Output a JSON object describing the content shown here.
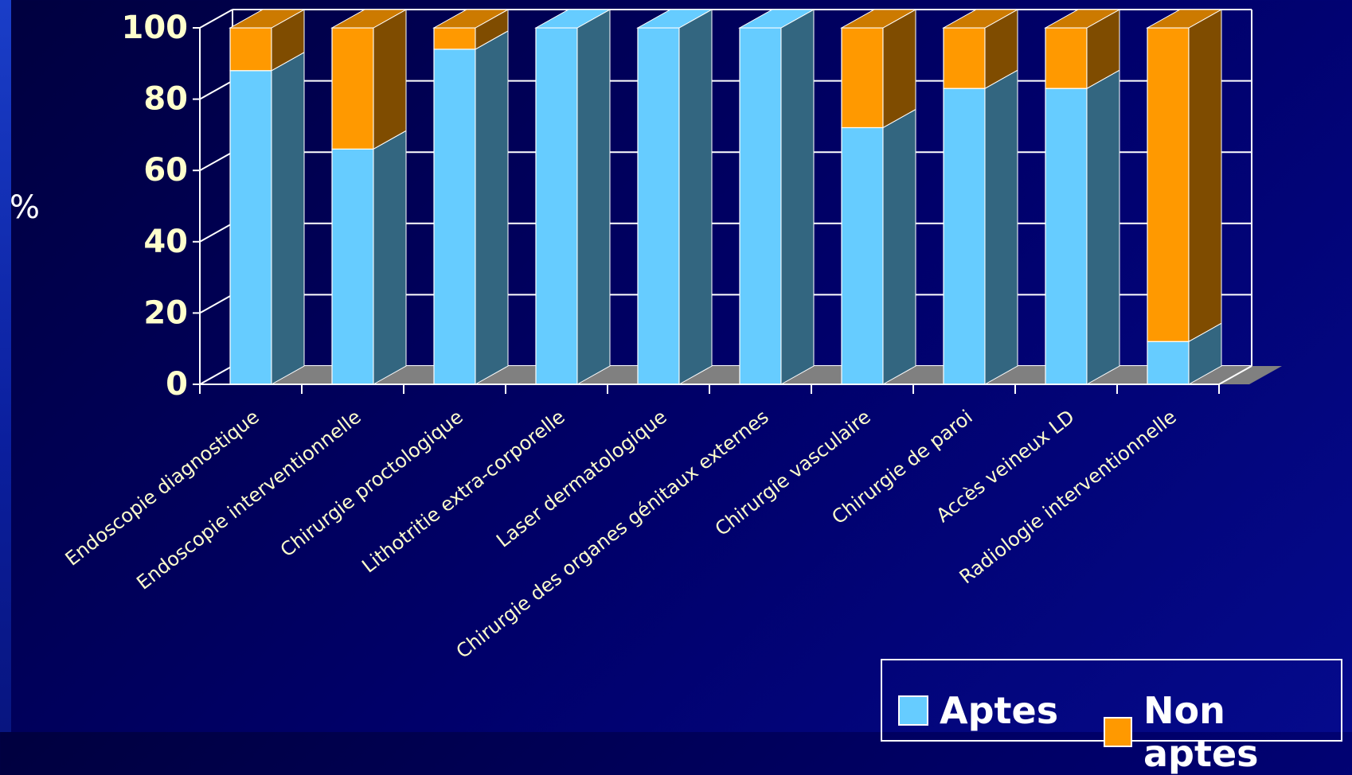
{
  "chart_data": {
    "type": "bar",
    "stacked": true,
    "three_d": true,
    "ylabel": "%",
    "ylim": [
      0,
      100
    ],
    "yticks": [
      0,
      20,
      40,
      60,
      80,
      100
    ],
    "grid": true,
    "legend_position": "bottom-right",
    "categories": [
      "Endoscopie diagnostique",
      "Endoscopie interventionnelle",
      "Chirurgie proctologique",
      "Lithotritie extra-corporelle",
      "Laser dermatologique",
      "Chirurgie des organes génitaux externes",
      "Chirurgie vasculaire",
      "Chirurgie de paroi",
      "Accès veineux LD",
      "Radiologie interventionnelle"
    ],
    "series": [
      {
        "name": "Aptes",
        "color": "#66ccff",
        "side_color": "#336680",
        "values": [
          88,
          66,
          94,
          100,
          100,
          100,
          72,
          83,
          83,
          12
        ]
      },
      {
        "name": "Non aptes",
        "color": "#ff9900",
        "side_color": "#7f4c00",
        "values": [
          12,
          34,
          6,
          0,
          0,
          0,
          28,
          17,
          17,
          88
        ]
      }
    ]
  },
  "colors": {
    "top_face": "#cc7a00",
    "floor": "#808080",
    "grid": "#ffffff",
    "tick_text": "#ffffcc"
  },
  "legend": {
    "aptes": "Aptes",
    "non_aptes": "Non aptes"
  }
}
